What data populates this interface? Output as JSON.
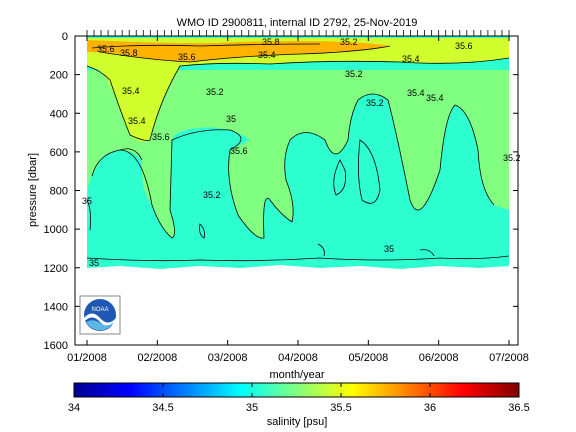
{
  "chart_data": {
    "type": "heatmap",
    "title": "WMO ID 2900811, internal ID 2792, 25-Nov-2019",
    "xlabel": "month/year",
    "ylabel": "pressure [dbar]",
    "x_ticks": [
      "01/2008",
      "02/2008",
      "03/2008",
      "04/2008",
      "05/2008",
      "06/2008",
      "07/2008"
    ],
    "y_ticks": [
      "0",
      "200",
      "400",
      "600",
      "800",
      "1000",
      "1200",
      "1400",
      "1600"
    ],
    "ylim": [
      1600,
      0
    ],
    "y_reversed": true,
    "colorbar": {
      "label": "salinity [psu]",
      "ticks": [
        "34",
        "34.5",
        "35",
        "35.5",
        "36",
        "36.5"
      ],
      "range": [
        34,
        36.5
      ],
      "colormap": "jet"
    },
    "contour_labels": [
      "35.8",
      "35.6",
      "35.6",
      "35.8",
      "35.4",
      "35.2",
      "35.4",
      "35.6",
      "35.4",
      "35.2",
      "35.4",
      "35.6",
      "35.2",
      "35.4",
      "35",
      "35.6",
      "35.4",
      "35.2",
      "35.2",
      "35.2",
      "35",
      "35",
      "35"
    ],
    "fields": [
      {
        "name": "base",
        "value": 35.05
      },
      {
        "name": "upper-layer",
        "value": 35.25
      },
      {
        "name": "surface-band",
        "value": 35.45
      },
      {
        "name": "surface-max",
        "value": 35.75
      }
    ]
  },
  "logo": {
    "text": "NOAA"
  }
}
